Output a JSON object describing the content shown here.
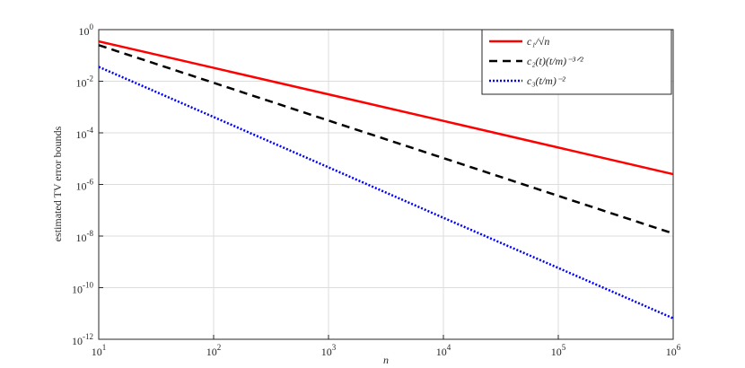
{
  "chart_data": {
    "type": "line",
    "ylabel": "estimated TV error bounds",
    "xlabel": "n",
    "x": [
      10,
      100,
      1000,
      10000,
      100000,
      1000000
    ],
    "series": [
      {
        "name": "c₁/√n",
        "color": "#ff0000",
        "style": "solid",
        "values": [
          0.35,
          0.033,
          0.0031,
          0.00029,
          2.7e-05,
          2.5e-06
        ]
      },
      {
        "name": "c₂(t)(t/m)⁻³ᐟ²",
        "color": "#000000",
        "style": "dashed",
        "values": [
          0.25,
          0.0087,
          0.0003,
          1.05e-05,
          3.6e-07,
          1.26e-08
        ]
      },
      {
        "name": "c₃(t/m)⁻²",
        "color": "#0000ff",
        "style": "dotted",
        "values": [
          0.036,
          0.00041,
          4.6e-06,
          5.1e-08,
          5.8e-10,
          6.5e-12
        ]
      }
    ],
    "log_x": true,
    "log_y": true,
    "xlim": [
      10,
      1000000
    ],
    "ylim": [
      1e-12,
      1
    ],
    "xticks": [
      {
        "value": 10,
        "label": "10",
        "exponent": "1"
      },
      {
        "value": 100,
        "label": "10",
        "exponent": "2"
      },
      {
        "value": 1000,
        "label": "10",
        "exponent": "3"
      },
      {
        "value": 10000,
        "label": "10",
        "exponent": "4"
      },
      {
        "value": 100000,
        "label": "10",
        "exponent": "5"
      },
      {
        "value": 1000000,
        "label": "10",
        "exponent": "6"
      }
    ],
    "yticks": [
      {
        "value": 1e-12,
        "label": "10",
        "exponent": "-12"
      },
      {
        "value": 1e-10,
        "label": "10",
        "exponent": "-10"
      },
      {
        "value": 1e-08,
        "label": "10",
        "exponent": "-8"
      },
      {
        "value": 1e-06,
        "label": "10",
        "exponent": "-6"
      },
      {
        "value": 0.0001,
        "label": "10",
        "exponent": "-4"
      },
      {
        "value": 0.01,
        "label": "10",
        "exponent": "-2"
      },
      {
        "value": 1,
        "label": "10",
        "exponent": "0"
      }
    ],
    "grid": true,
    "legend": "upper right"
  }
}
